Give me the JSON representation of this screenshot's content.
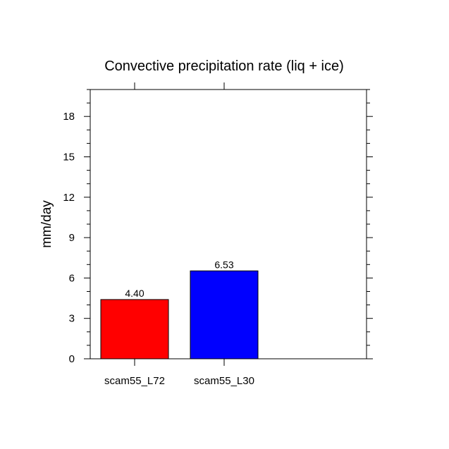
{
  "chart_data": {
    "type": "bar",
    "title": "Convective precipitation rate (liq + ice)",
    "xlabel": "",
    "ylabel": "mm/day",
    "ylim": [
      0,
      20
    ],
    "yticks": [
      0,
      3,
      6,
      9,
      12,
      15,
      18
    ],
    "categories": [
      "scam55_L72",
      "scam55_L30"
    ],
    "values": [
      4.4,
      6.53
    ],
    "value_labels": [
      "4.40",
      "6.53"
    ],
    "colors": [
      "#ff0000",
      "#0000ff"
    ],
    "grid": false,
    "legend": "none"
  }
}
